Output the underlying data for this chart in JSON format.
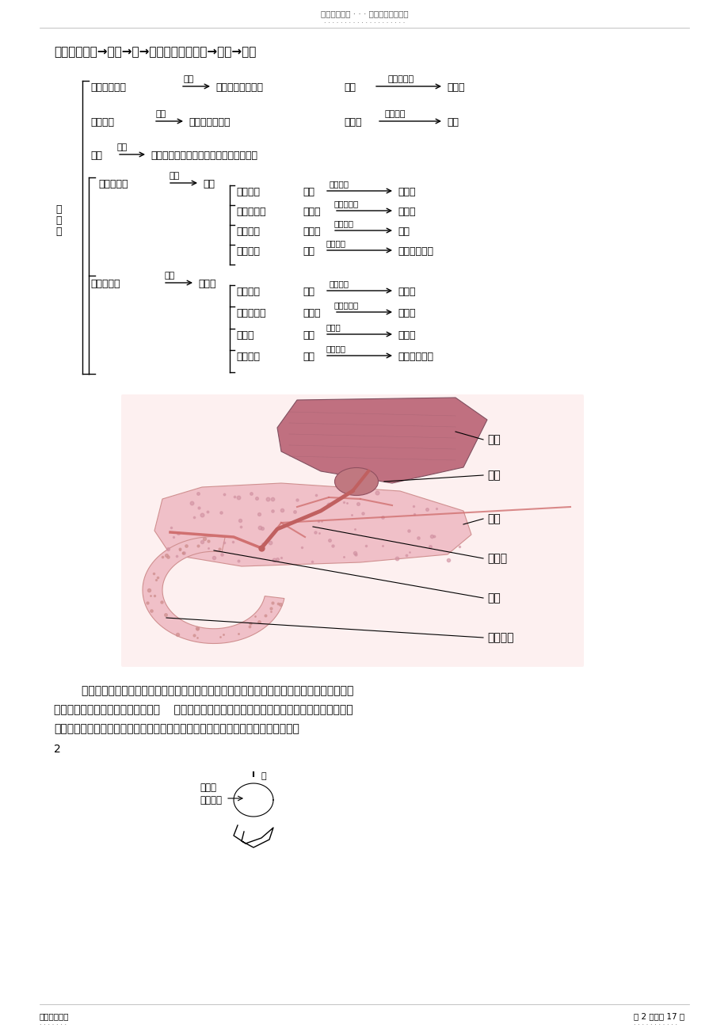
{
  "title_top": "名师资料总结 · · · 精品资料欢迎下载",
  "title_dots": "· · · · · · · · · · · · · · · · · · · ·",
  "section_title": "消化道：口腔→食道→胃→小肠（十二指肠）→大肠→肛门",
  "footer_left": "名师精心整理",
  "footer_left_dots": "· · · · · · ·",
  "footer_right": "第 2 页，共 17 页",
  "footer_right_dots": "· · · · · · · · · · ·",
  "bottom_text1": "        口腔内只能初步消化淀粉，食道无消化功能；胃只能初步消化蛋白质；小肠是消化和吸收食物",
  "bottom_text2": "的主要器官，脂肪只能在小肠消化。    淀粉、脂肪和蛋白质在小肠内被彻底消化成葡萄糖、甘油和脂",
  "bottom_text3": "肪酸、氨基酸；大肠无消化功能，但有吸收功能。消化道各段吸收营养物质的情况：",
  "page_num": "2",
  "bg_color": "#ffffff",
  "text_color": "#000000"
}
